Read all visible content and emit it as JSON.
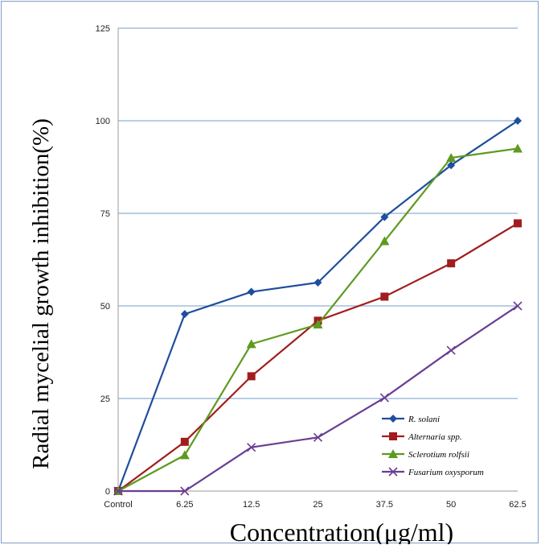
{
  "chart_data": {
    "type": "line",
    "categories": [
      "Control",
      "6.25",
      "12.5",
      "25",
      "37.5",
      "50",
      "62.5"
    ],
    "ylabel": "Radial mycelial  growth inhibition(%)",
    "xlabel": "Concentration(μg/ml)",
    "ylim": [
      0,
      125
    ],
    "yticks": [
      0,
      25,
      50,
      75,
      100,
      125
    ],
    "grid": true,
    "legend_position": "bottom-right",
    "series": [
      {
        "name": "R. solani",
        "color": "#1f4e9c",
        "marker": "diamond",
        "values": [
          0,
          47.8,
          53.8,
          56.3,
          74,
          88,
          100
        ]
      },
      {
        "name": "Alternaria spp.",
        "color": "#a11d1d",
        "marker": "square",
        "values": [
          0,
          13.3,
          31,
          46,
          52.5,
          61.5,
          72.3
        ]
      },
      {
        "name": "Sclerotium rolfsii",
        "color": "#5e9a1f",
        "marker": "triangle",
        "values": [
          0,
          9.7,
          39.7,
          45,
          67.5,
          90,
          92.5
        ]
      },
      {
        "name": "Fusarium oxysporum",
        "color": "#6a3d92",
        "marker": "x",
        "values": [
          0,
          0,
          11.8,
          14.5,
          25.2,
          38,
          50
        ]
      }
    ]
  }
}
